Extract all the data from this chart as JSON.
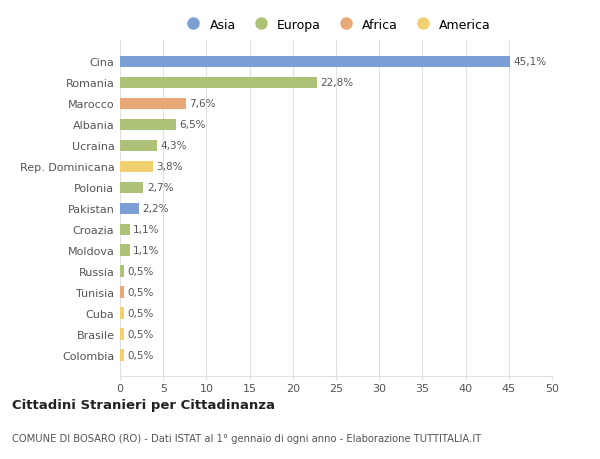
{
  "categories": [
    "Cina",
    "Romania",
    "Marocco",
    "Albania",
    "Ucraina",
    "Rep. Dominicana",
    "Polonia",
    "Pakistan",
    "Croazia",
    "Moldova",
    "Russia",
    "Tunisia",
    "Cuba",
    "Brasile",
    "Colombia"
  ],
  "values": [
    45.1,
    22.8,
    7.6,
    6.5,
    4.3,
    3.8,
    2.7,
    2.2,
    1.1,
    1.1,
    0.5,
    0.5,
    0.5,
    0.5,
    0.5
  ],
  "labels": [
    "45,1%",
    "22,8%",
    "7,6%",
    "6,5%",
    "4,3%",
    "3,8%",
    "2,7%",
    "2,2%",
    "1,1%",
    "1,1%",
    "0,5%",
    "0,5%",
    "0,5%",
    "0,5%",
    "0,5%"
  ],
  "continents": [
    "Asia",
    "Europa",
    "Africa",
    "Europa",
    "Europa",
    "America",
    "Europa",
    "Asia",
    "Europa",
    "Europa",
    "Europa",
    "Africa",
    "America",
    "America",
    "America"
  ],
  "colors": {
    "Asia": "#7b9fd4",
    "Europa": "#adc178",
    "Africa": "#e8a878",
    "America": "#f0d070"
  },
  "legend_order": [
    "Asia",
    "Europa",
    "Africa",
    "America"
  ],
  "xlim": [
    0,
    50
  ],
  "xticks": [
    0,
    5,
    10,
    15,
    20,
    25,
    30,
    35,
    40,
    45,
    50
  ],
  "title": "Cittadini Stranieri per Cittadinanza",
  "subtitle": "COMUNE DI BOSARO (RO) - Dati ISTAT al 1° gennaio di ogni anno - Elaborazione TUTTITALIA.IT",
  "background_color": "#ffffff",
  "grid_color": "#e0e0e0"
}
